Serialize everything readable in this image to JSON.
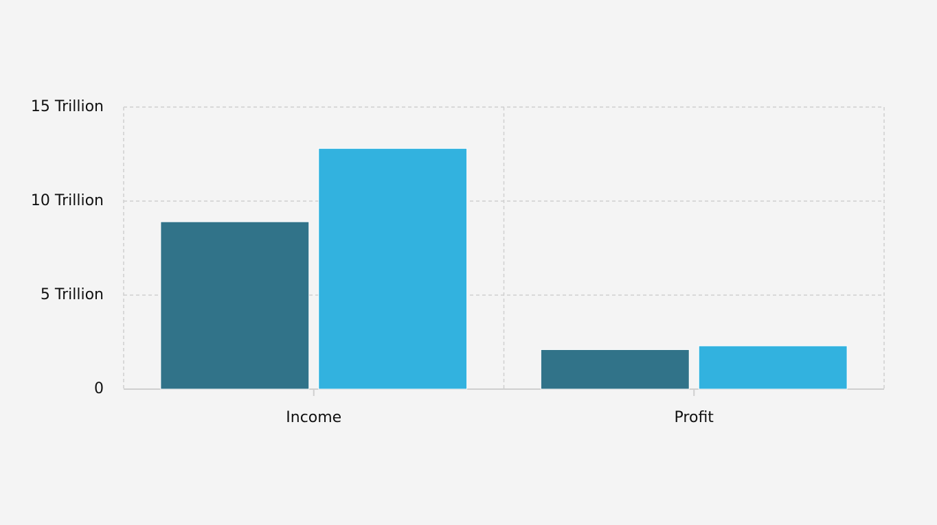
{
  "chart_data": {
    "type": "bar",
    "categories": [
      "Income",
      "Profit"
    ],
    "series": [
      {
        "color": "#317389",
        "values": [
          8900000000000,
          2100000000000
        ]
      },
      {
        "color": "#32b2df",
        "values": [
          12800000000000,
          2300000000000
        ]
      }
    ],
    "ylim": [
      0,
      15000000000000
    ],
    "yticks": [
      0,
      {
        "value": 5000000000000,
        "label": "5 Trillion"
      },
      {
        "value": 10000000000000,
        "label": "10 Trillion"
      },
      {
        "value": 15000000000000,
        "label": "15 Trillion"
      }
    ],
    "grid": true
  }
}
